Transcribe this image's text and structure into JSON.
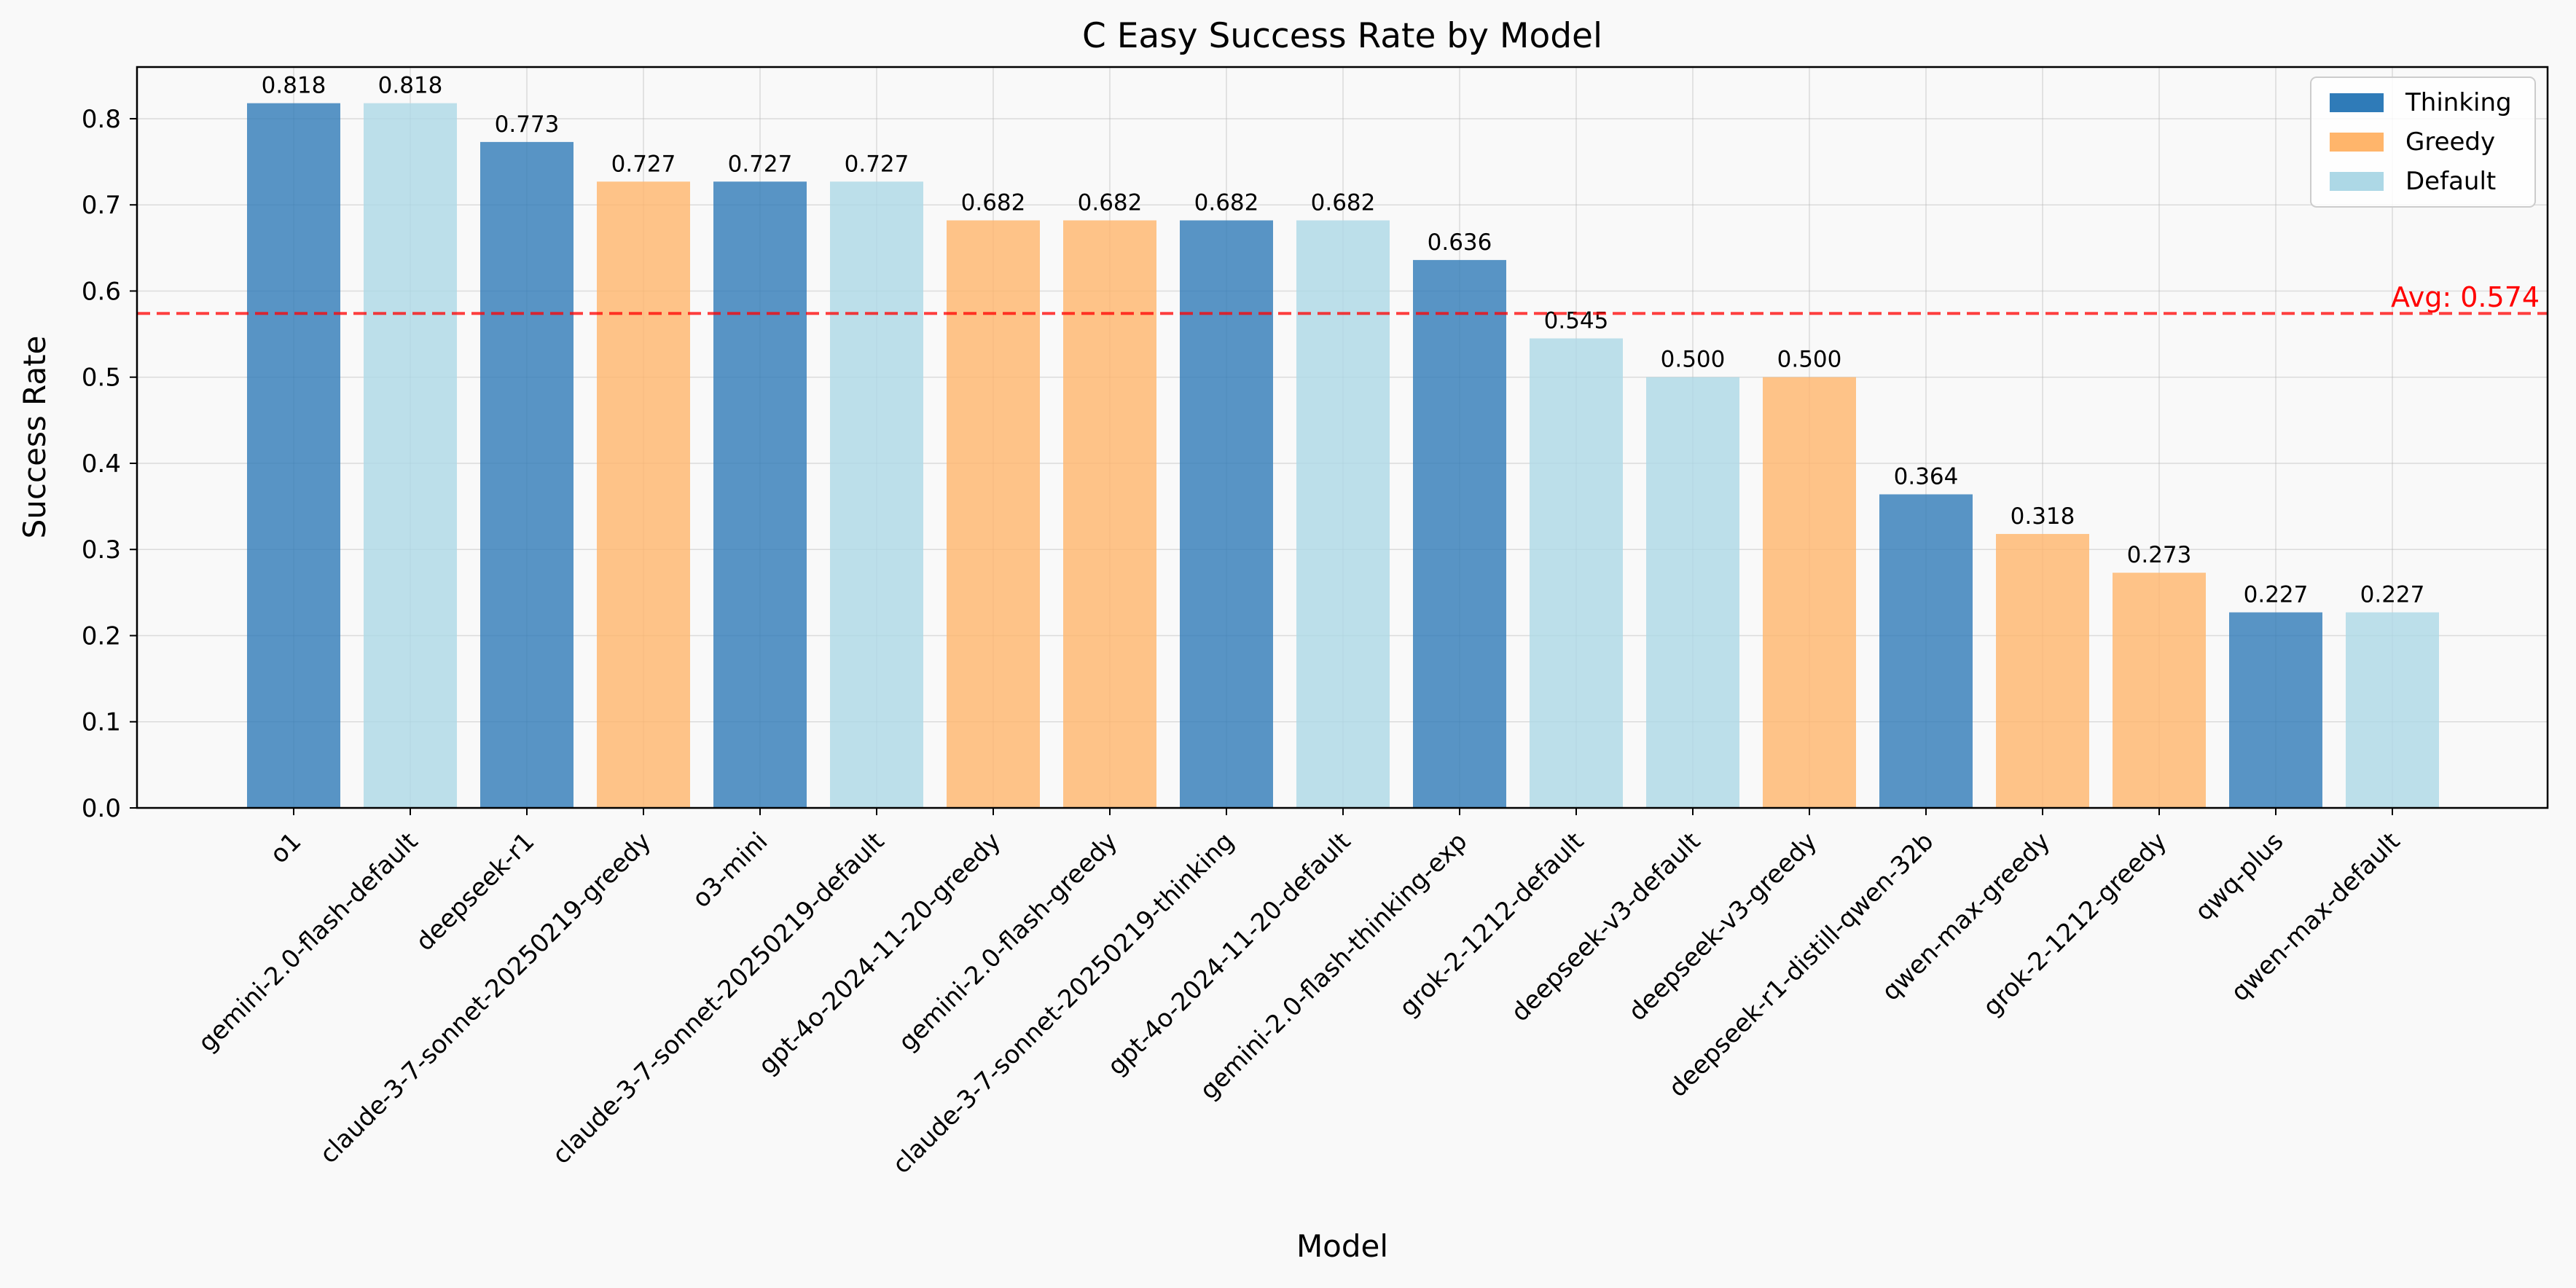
{
  "chart_data": {
    "type": "bar",
    "title": "C Easy Success Rate by Model",
    "xlabel": "Model",
    "ylabel": "Success Rate",
    "ylim": [
      0,
      0.86
    ],
    "yticks": [
      0.0,
      0.1,
      0.2,
      0.3,
      0.4,
      0.5,
      0.6,
      0.7,
      0.8
    ],
    "grid": true,
    "legend_position": "top-right",
    "legend": [
      {
        "name": "Thinking",
        "color": "#2f7bb8"
      },
      {
        "name": "Greedy",
        "color": "#ffb56b"
      },
      {
        "name": "Default",
        "color": "#add8e6"
      }
    ],
    "average": {
      "value": 0.574,
      "label": "Avg: 0.574",
      "color": "#ff0000"
    },
    "bars": [
      {
        "category": "o1",
        "value": 0.818,
        "label": "0.818",
        "group": "Thinking"
      },
      {
        "category": "gemini-2.0-flash-default",
        "value": 0.818,
        "label": "0.818",
        "group": "Default"
      },
      {
        "category": "deepseek-r1",
        "value": 0.773,
        "label": "0.773",
        "group": "Thinking"
      },
      {
        "category": "claude-3-7-sonnet-20250219-greedy",
        "value": 0.727,
        "label": "0.727",
        "group": "Greedy"
      },
      {
        "category": "o3-mini",
        "value": 0.727,
        "label": "0.727",
        "group": "Thinking"
      },
      {
        "category": "claude-3-7-sonnet-20250219-default",
        "value": 0.727,
        "label": "0.727",
        "group": "Default"
      },
      {
        "category": "gpt-4o-2024-11-20-greedy",
        "value": 0.682,
        "label": "0.682",
        "group": "Greedy"
      },
      {
        "category": "gemini-2.0-flash-greedy",
        "value": 0.682,
        "label": "0.682",
        "group": "Greedy"
      },
      {
        "category": "claude-3-7-sonnet-20250219-thinking",
        "value": 0.682,
        "label": "0.682",
        "group": "Thinking"
      },
      {
        "category": "gpt-4o-2024-11-20-default",
        "value": 0.682,
        "label": "0.682",
        "group": "Default"
      },
      {
        "category": "gemini-2.0-flash-thinking-exp",
        "value": 0.636,
        "label": "0.636",
        "group": "Thinking"
      },
      {
        "category": "grok-2-1212-default",
        "value": 0.545,
        "label": "0.545",
        "group": "Default"
      },
      {
        "category": "deepseek-v3-default",
        "value": 0.5,
        "label": "0.500",
        "group": "Default"
      },
      {
        "category": "deepseek-v3-greedy",
        "value": 0.5,
        "label": "0.500",
        "group": "Greedy"
      },
      {
        "category": "deepseek-r1-distill-qwen-32b",
        "value": 0.364,
        "label": "0.364",
        "group": "Thinking"
      },
      {
        "category": "qwen-max-greedy",
        "value": 0.318,
        "label": "0.318",
        "group": "Greedy"
      },
      {
        "category": "grok-2-1212-greedy",
        "value": 0.273,
        "label": "0.273",
        "group": "Greedy"
      },
      {
        "category": "qwq-plus",
        "value": 0.227,
        "label": "0.227",
        "group": "Thinking"
      },
      {
        "category": "qwen-max-default",
        "value": 0.227,
        "label": "0.227",
        "group": "Default"
      }
    ]
  }
}
